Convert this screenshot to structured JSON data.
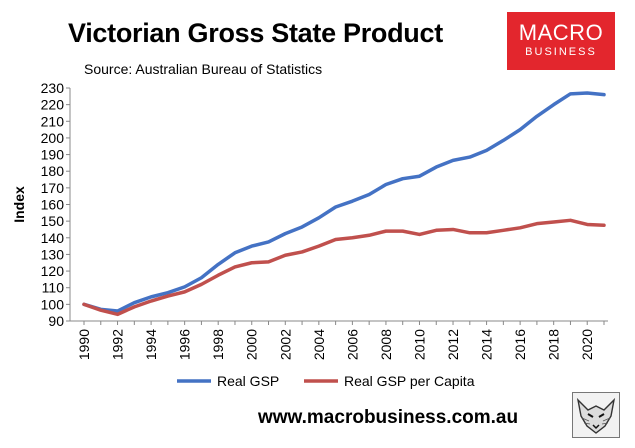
{
  "header": {
    "title": "Victorian Gross State Product",
    "subtitle": "Source: Australian Bureau of Statistics"
  },
  "brand": {
    "line1": "MACRO",
    "line2": "BUSINESS",
    "color": "#e3262d"
  },
  "footer": {
    "url": "www.macrobusiness.com.au",
    "logo_icon": "fox-icon"
  },
  "chart_data": {
    "type": "line",
    "title": "",
    "xlabel": "",
    "ylabel": "Index",
    "ylim": [
      90,
      230
    ],
    "yticks": [
      90,
      100,
      110,
      120,
      130,
      140,
      150,
      160,
      170,
      180,
      190,
      200,
      210,
      220,
      230
    ],
    "xlim": [
      1990,
      2021
    ],
    "xticks": [
      1990,
      1992,
      1994,
      1996,
      1998,
      2000,
      2002,
      2004,
      2006,
      2008,
      2010,
      2012,
      2014,
      2016,
      2018,
      2020
    ],
    "grid": false,
    "legend_position": "bottom",
    "x": [
      1990,
      1991,
      1992,
      1993,
      1994,
      1995,
      1996,
      1997,
      1998,
      1999,
      2000,
      2001,
      2002,
      2003,
      2004,
      2005,
      2006,
      2007,
      2008,
      2009,
      2010,
      2011,
      2012,
      2013,
      2014,
      2015,
      2016,
      2017,
      2018,
      2019,
      2020,
      2021
    ],
    "series": [
      {
        "name": "Real GSP",
        "color": "#4472c4",
        "values": [
          100,
          97,
          96,
          101,
          104.5,
          107,
          110.5,
          116,
          124,
          131,
          135,
          137.5,
          142.5,
          146.5,
          152,
          158.5,
          162,
          166,
          172,
          175.5,
          177,
          182.5,
          186.5,
          188.5,
          192.5,
          198.5,
          205,
          213,
          220,
          226.5,
          227,
          226
        ]
      },
      {
        "name": "Real GSP per Capita",
        "color": "#c0504d",
        "values": [
          100,
          96.5,
          94,
          98.5,
          102,
          105,
          107.5,
          112,
          117.5,
          122.5,
          125,
          125.5,
          129.5,
          131.5,
          135,
          139,
          140,
          141.5,
          144,
          144,
          142,
          144.5,
          145,
          143,
          143,
          144.5,
          146,
          148.5,
          149.5,
          150.5,
          148,
          147.5
        ]
      }
    ]
  }
}
